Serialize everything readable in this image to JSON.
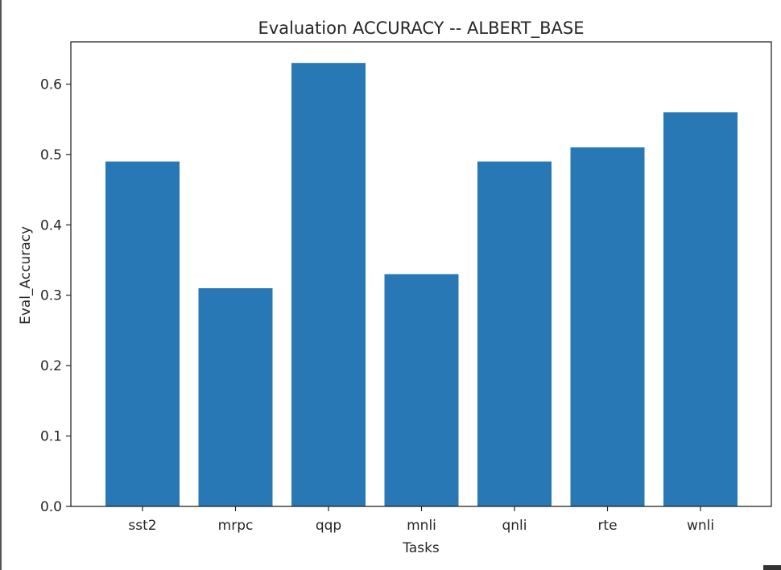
{
  "chart_data": {
    "type": "bar",
    "title": "Evaluation ACCURACY -- ALBERT_BASE",
    "xlabel": "Tasks",
    "ylabel": "Eval_Accuracy",
    "categories": [
      "sst2",
      "mrpc",
      "qqp",
      "mnli",
      "qnli",
      "rte",
      "wnli"
    ],
    "values": [
      0.49,
      0.31,
      0.63,
      0.33,
      0.49,
      0.51,
      0.56
    ],
    "ylim": [
      0,
      0.66
    ],
    "yticks": [
      0.0,
      0.1,
      0.2,
      0.3,
      0.4,
      0.5,
      0.6
    ],
    "ytick_labels": [
      "0.0",
      "0.1",
      "0.2",
      "0.3",
      "0.4",
      "0.5",
      "0.6"
    ],
    "bar_color": "#2878b5",
    "grid": false,
    "legend": "none"
  }
}
